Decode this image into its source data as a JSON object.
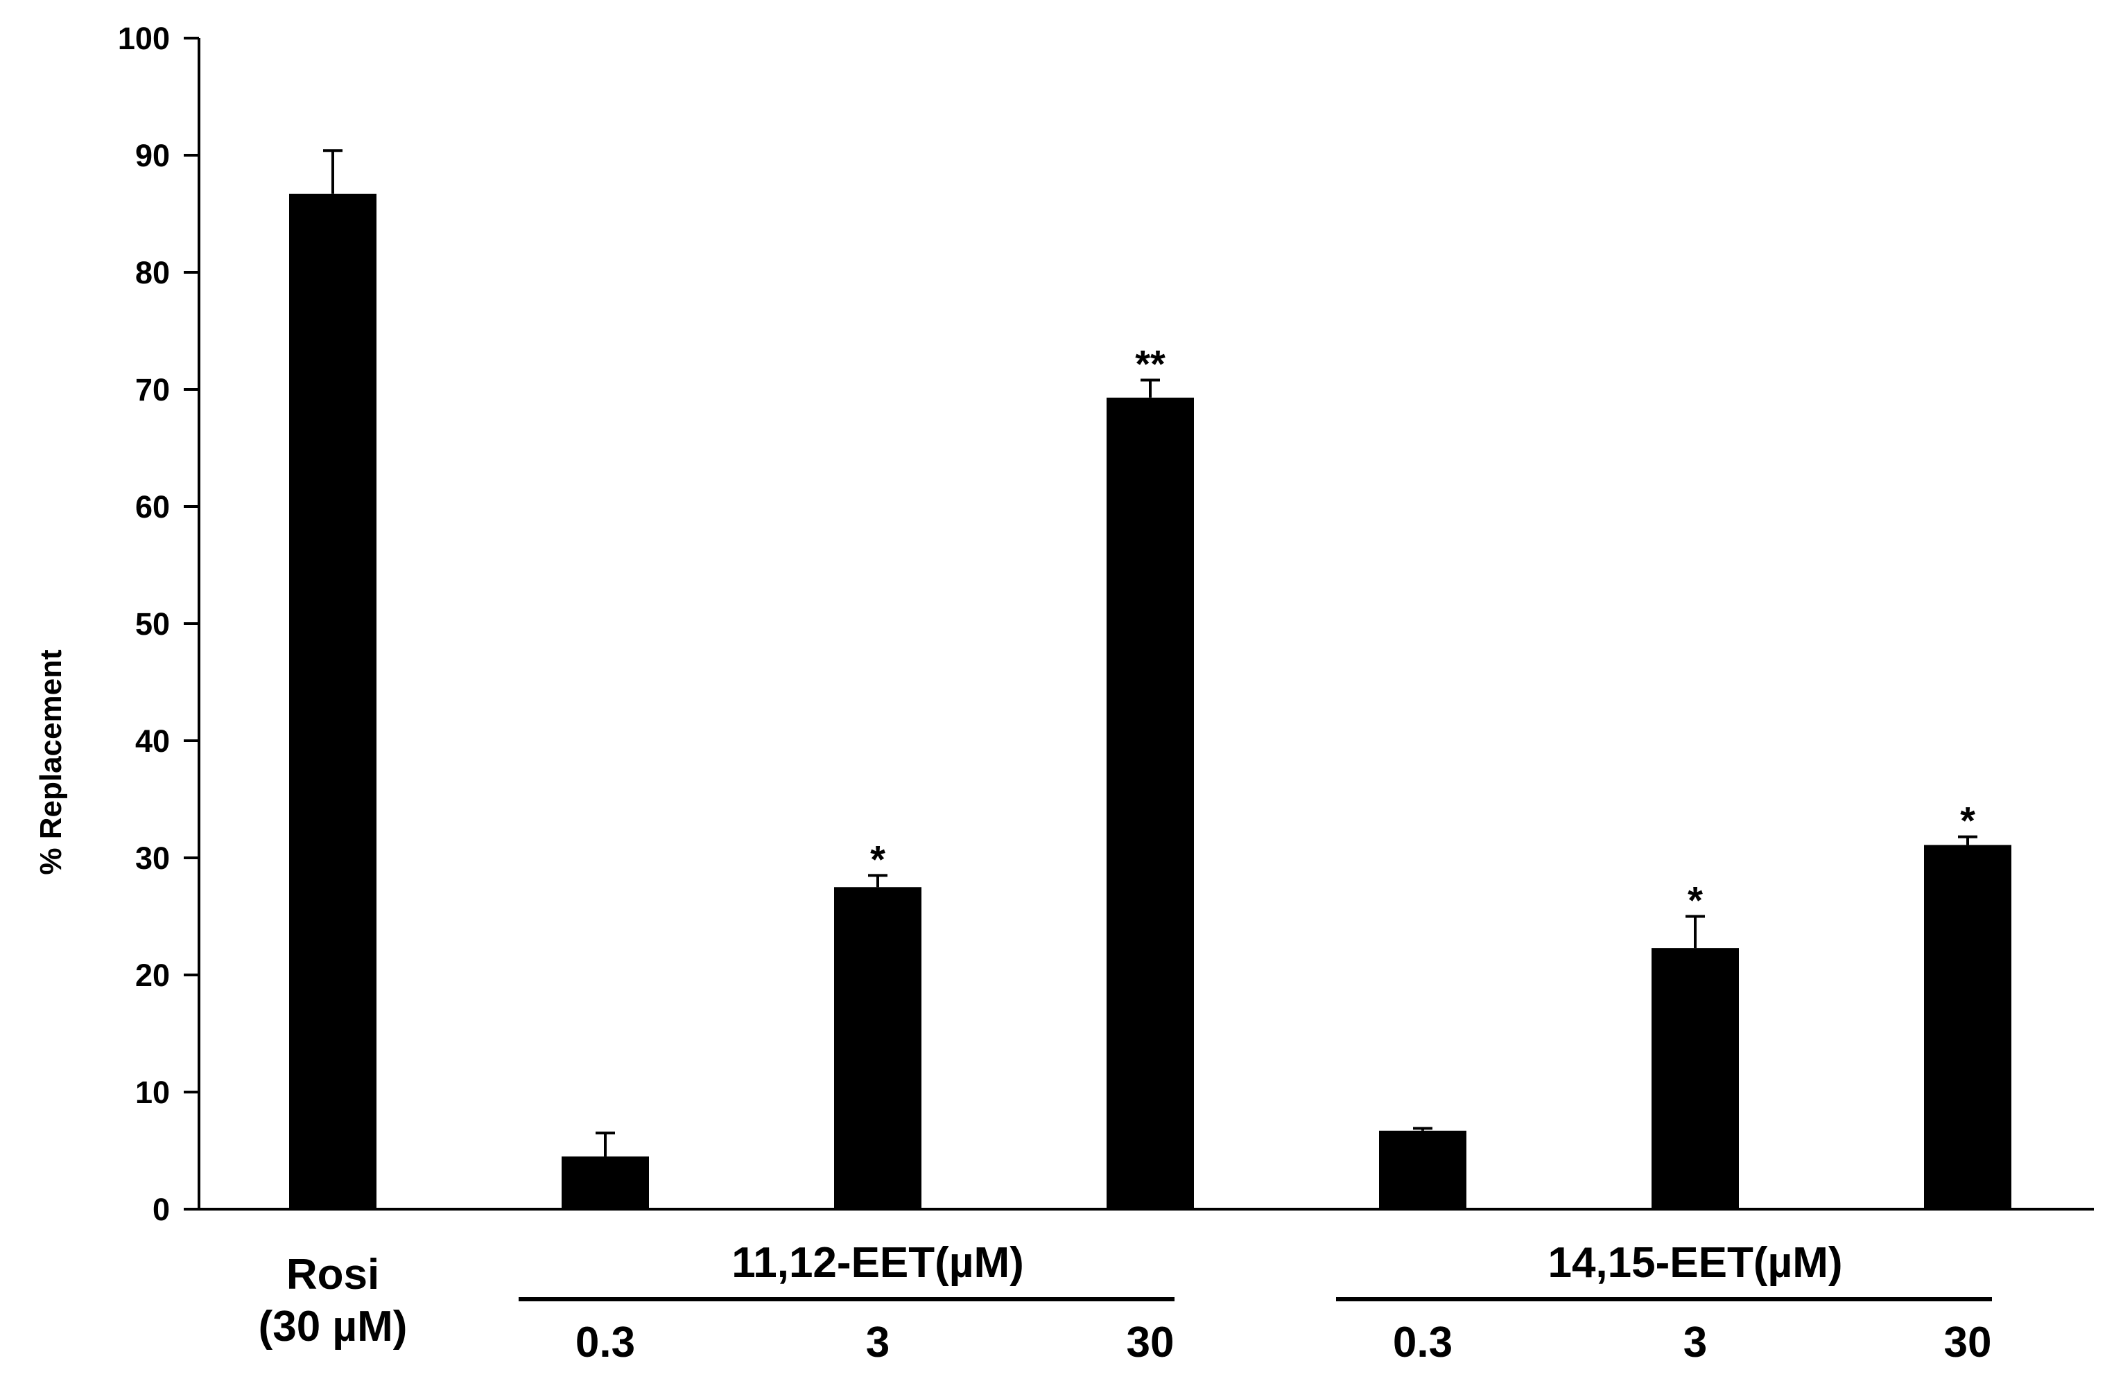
{
  "chart_data": {
    "type": "bar",
    "title": "",
    "xlabel": "",
    "ylabel": "% Replacement",
    "ylim": [
      0,
      100
    ],
    "yticks": [
      0,
      10,
      20,
      30,
      40,
      50,
      60,
      70,
      80,
      90,
      100
    ],
    "grid": false,
    "bar_color": "#000000",
    "categories": [
      {
        "group": "Rosi",
        "lines": [
          "Rosi",
          "(30 µM)"
        ]
      },
      {
        "group": "11,12-EET(µM)",
        "dose": "0.3"
      },
      {
        "group": "11,12-EET(µM)",
        "dose": "3"
      },
      {
        "group": "11,12-EET(µM)",
        "dose": "30"
      },
      {
        "group": "14,15-EET(µM)",
        "dose": "0.3"
      },
      {
        "group": "14,15-EET(µM)",
        "dose": "3"
      },
      {
        "group": "14,15-EET(µM)",
        "dose": "30"
      }
    ],
    "values": [
      86.7,
      4.5,
      27.5,
      69.3,
      6.7,
      22.3,
      31.1
    ],
    "errors": [
      3.7,
      2.0,
      1.0,
      1.5,
      0.2,
      2.7,
      0.7
    ],
    "significance": [
      "",
      "",
      "*",
      "**",
      "",
      "*",
      "*"
    ],
    "groups": [
      {
        "label": "11,12-EET(µM)",
        "doses": [
          "0.3",
          "3",
          "30"
        ]
      },
      {
        "label": "14,15-EET(µM)",
        "doses": [
          "0.3",
          "3",
          "30"
        ]
      }
    ],
    "rosi_label": [
      "Rosi",
      "(30 µM)"
    ]
  }
}
